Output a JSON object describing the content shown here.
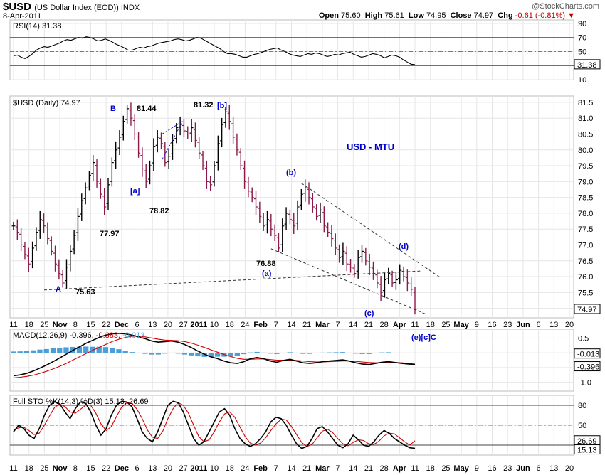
{
  "header": {
    "symbol": "$USD",
    "name": "(US Dollar Index (EOD))",
    "exchange": "INDX",
    "date": "8-Apr-2011",
    "open_label": "Open",
    "open": "75.60",
    "high_label": "High",
    "high": "75.61",
    "low_label": "Low",
    "low": "74.95",
    "close_label": "Close",
    "close": "74.97",
    "chg_label": "Chg",
    "chg": "-0.61 (-0.81%)",
    "logo": "@StockCharts.com"
  },
  "colors": {
    "up": "#000000",
    "down": "#8b1a4a",
    "blue_label": "#0000cc",
    "rsi_fill": "#555555",
    "macd_hist": "#4a9fd8",
    "signal": "#d00000",
    "pane_border": "#bbbbbb"
  },
  "x_axis": {
    "labels": [
      "11",
      "18",
      "25",
      "Nov",
      "8",
      "15",
      "22",
      "Dec",
      "6",
      "13",
      "20",
      "27",
      "2011",
      "10",
      "18",
      "24",
      "Feb",
      "7",
      "14",
      "21",
      "Mar",
      "7",
      "14",
      "21",
      "28",
      "Apr",
      "11",
      "18",
      "25",
      "May",
      "9",
      "16",
      "23",
      "Jun",
      "6",
      "13",
      "20"
    ],
    "bold": [
      "Nov",
      "Dec",
      "2011",
      "Feb",
      "Mar",
      "Apr",
      "May",
      "Jun"
    ]
  },
  "chart_data": [
    {
      "type": "line",
      "title": "RSI(14) 31.38",
      "ylim": [
        10,
        95
      ],
      "ticks": [
        10,
        30,
        50,
        70,
        90
      ],
      "reference_lines": [
        30,
        50,
        70
      ],
      "last_value_label": "31.38",
      "values": [
        44,
        45,
        42,
        40,
        43,
        47,
        52,
        55,
        57,
        56,
        58,
        60,
        62,
        65,
        67,
        66,
        68,
        70,
        69,
        71,
        70,
        68,
        65,
        66,
        68,
        66,
        63,
        60,
        58,
        55,
        52,
        52,
        54,
        56,
        55,
        57,
        58,
        60,
        62,
        63,
        64,
        65,
        67,
        68,
        67,
        65,
        66,
        68,
        70,
        69,
        66,
        63,
        60,
        57,
        54,
        50,
        47,
        47,
        46,
        44,
        42,
        42,
        44,
        46,
        47,
        49,
        51,
        53,
        54,
        55,
        52,
        50,
        47,
        45,
        44,
        43,
        45,
        47,
        46,
        48,
        47,
        45,
        43,
        44,
        46,
        45,
        47,
        48,
        49,
        46,
        44,
        42,
        43,
        45,
        47,
        46,
        44,
        41,
        43,
        45,
        44,
        42,
        38,
        35,
        32,
        31.38
      ]
    },
    {
      "type": "ohlc",
      "title": "$USD (Daily) 74.97",
      "ylim": [
        74.7,
        81.7
      ],
      "ticks": [
        75.0,
        75.5,
        76.0,
        76.5,
        77.0,
        77.5,
        78.0,
        78.5,
        79.0,
        79.5,
        80.0,
        80.5,
        81.0,
        81.5
      ],
      "last_value_label": "74.97",
      "closes": [
        77.6,
        77.4,
        77.0,
        76.7,
        76.4,
        76.9,
        77.4,
        77.8,
        77.6,
        77.2,
        76.8,
        76.4,
        76.1,
        75.8,
        76.3,
        76.8,
        77.3,
        77.9,
        78.4,
        78.8,
        79.2,
        79.6,
        79.0,
        78.6,
        78.2,
        78.9,
        79.6,
        80.0,
        80.4,
        80.9,
        81.3,
        81.0,
        80.5,
        79.9,
        79.4,
        79.0,
        79.5,
        80.1,
        80.4,
        80.2,
        79.6,
        79.8,
        80.3,
        80.7,
        80.8,
        80.6,
        80.5,
        80.7,
        80.3,
        79.9,
        79.5,
        79.0,
        78.9,
        79.5,
        80.2,
        80.8,
        81.2,
        80.9,
        80.4,
        80.0,
        79.5,
        79.0,
        78.7,
        78.5,
        78.2,
        77.9,
        77.6,
        77.8,
        77.5,
        77.3,
        76.9,
        77.6,
        78.0,
        77.8,
        77.6,
        78.2,
        78.6,
        78.8,
        78.5,
        78.2,
        77.9,
        78.1,
        77.6,
        77.4,
        77.2,
        76.9,
        76.6,
        76.8,
        76.4,
        76.3,
        76.1,
        76.6,
        76.8,
        76.5,
        76.3,
        76.1,
        75.8,
        75.5,
        75.9,
        76.1,
        75.8,
        75.9,
        76.2,
        76.0,
        75.8,
        75.6,
        74.97
      ],
      "annotations": [
        "B",
        "81.44",
        "81.32",
        "[b]",
        "[a]",
        "78.82",
        "77.97",
        "A",
        "75.63",
        "(b)",
        "76.88",
        "(a)",
        "(c)",
        "(d)",
        "USD - MTU",
        "(e)[c]C"
      ]
    },
    {
      "type": "line",
      "title": "MACD(12,26,9)",
      "subtitle_values": [
        "-0.396",
        "-0.383",
        "-0.013"
      ],
      "ylim": [
        -1.3,
        0.8
      ],
      "ticks": [
        -1.0,
        -0.5,
        0.0,
        0.5
      ],
      "last_value_labels": [
        "-0.013",
        "-0.396"
      ],
      "macd": [
        -0.78,
        -0.75,
        -0.7,
        -0.62,
        -0.52,
        -0.42,
        -0.3,
        -0.18,
        -0.05,
        0.08,
        0.2,
        0.32,
        0.42,
        0.52,
        0.6,
        0.64,
        0.66,
        0.64,
        0.6,
        0.54,
        0.48,
        0.4,
        0.36,
        0.38,
        0.4,
        0.36,
        0.28,
        0.18,
        0.06,
        -0.05,
        -0.14,
        -0.2,
        -0.28,
        -0.34,
        -0.36,
        -0.3,
        -0.2,
        -0.16,
        -0.2,
        -0.28,
        -0.32,
        -0.26,
        -0.22,
        -0.28,
        -0.34,
        -0.36,
        -0.34,
        -0.3,
        -0.28,
        -0.26,
        -0.24,
        -0.28,
        -0.34,
        -0.38,
        -0.4,
        -0.36,
        -0.32,
        -0.3,
        -0.33,
        -0.36,
        -0.38,
        -0.396
      ],
      "signal": [
        -0.85,
        -0.83,
        -0.8,
        -0.76,
        -0.7,
        -0.63,
        -0.55,
        -0.46,
        -0.36,
        -0.25,
        -0.14,
        -0.03,
        0.08,
        0.18,
        0.28,
        0.38,
        0.46,
        0.52,
        0.56,
        0.56,
        0.54,
        0.5,
        0.46,
        0.43,
        0.42,
        0.41,
        0.38,
        0.33,
        0.26,
        0.18,
        0.1,
        0.02,
        -0.06,
        -0.13,
        -0.19,
        -0.22,
        -0.22,
        -0.21,
        -0.21,
        -0.23,
        -0.25,
        -0.25,
        -0.25,
        -0.26,
        -0.28,
        -0.3,
        -0.31,
        -0.31,
        -0.3,
        -0.29,
        -0.28,
        -0.28,
        -0.29,
        -0.31,
        -0.33,
        -0.34,
        -0.34,
        -0.33,
        -0.33,
        -0.34,
        -0.36,
        -0.383
      ]
    },
    {
      "type": "line",
      "title": "Full STO %K(14,3) %D(3) 15.13, 26.69",
      "ylim": [
        5,
        95
      ],
      "ticks": [
        20,
        50,
        80
      ],
      "reference_lines": [
        20,
        50,
        80
      ],
      "last_value_labels": [
        "26.69",
        "15.13"
      ],
      "k": [
        40,
        50,
        45,
        35,
        30,
        45,
        65,
        80,
        85,
        82,
        70,
        60,
        75,
        85,
        83,
        70,
        50,
        35,
        45,
        65,
        80,
        86,
        85,
        78,
        60,
        40,
        30,
        25,
        40,
        60,
        80,
        86,
        84,
        70,
        50,
        30,
        20,
        25,
        40,
        55,
        70,
        75,
        65,
        45,
        30,
        22,
        18,
        22,
        30,
        40,
        55,
        62,
        60,
        50,
        35,
        22,
        15,
        18,
        30,
        45,
        48,
        40,
        30,
        20,
        16,
        22,
        35,
        28,
        20,
        18,
        25,
        35,
        42,
        38,
        30,
        25,
        20,
        16,
        15.13
      ],
      "d": [
        42,
        46,
        47,
        42,
        36,
        38,
        50,
        64,
        77,
        82,
        78,
        70,
        68,
        74,
        80,
        80,
        68,
        52,
        42,
        48,
        63,
        77,
        84,
        83,
        74,
        60,
        43,
        32,
        30,
        41,
        60,
        75,
        84,
        80,
        68,
        50,
        33,
        25,
        28,
        40,
        55,
        67,
        70,
        62,
        47,
        33,
        23,
        20,
        23,
        31,
        42,
        52,
        59,
        58,
        48,
        36,
        24,
        18,
        21,
        31,
        41,
        44,
        39,
        30,
        22,
        19,
        24,
        28,
        27,
        22,
        21,
        26,
        34,
        38,
        37,
        31,
        25,
        20,
        26.69
      ]
    }
  ]
}
